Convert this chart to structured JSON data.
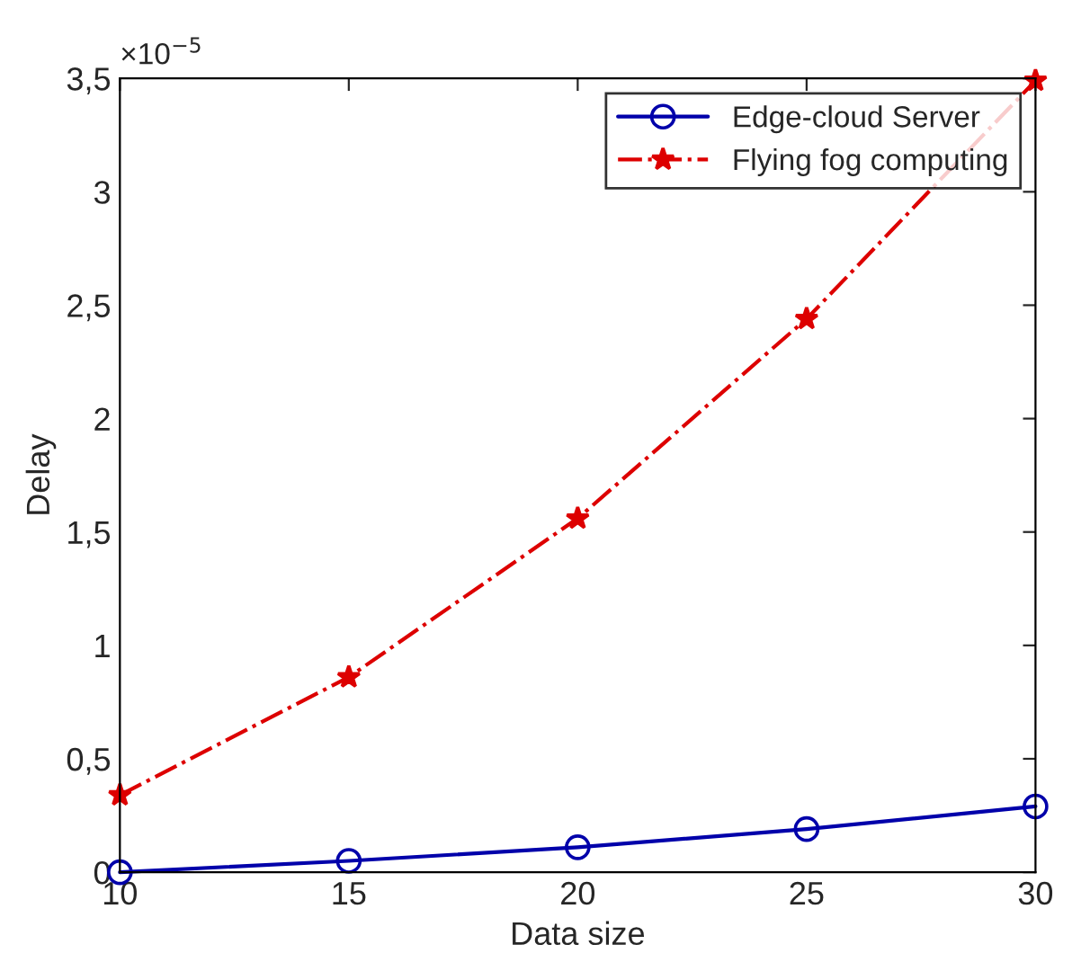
{
  "chart_data": {
    "type": "line",
    "xlabel": "Data size",
    "ylabel": "Delay",
    "annotations": [
      "×10$^{−5}$"
    ],
    "x": [
      10,
      15,
      20,
      25,
      30
    ],
    "series": [
      {
        "name": "Edge-cloud Server",
        "color": "#0000aa",
        "values": [
          0.0,
          0.05,
          0.11,
          0.19,
          0.29
        ],
        "marker": "circle",
        "line_style": "solid"
      },
      {
        "name": "Flying fog computing",
        "color": "#dd0000",
        "values": [
          0.34,
          0.86,
          1.56,
          2.44,
          3.49
        ],
        "marker": "star",
        "line_style": "dashdot"
      }
    ],
    "xlim": [
      10,
      30
    ],
    "xticks": [
      10,
      15,
      20,
      25,
      30
    ],
    "ylim": [
      0,
      3.5
    ],
    "yticks": [
      0,
      {
        "value": 0.5,
        "label": "0,5"
      },
      1,
      {
        "value": 1.5,
        "label": "1,5"
      },
      2,
      {
        "value": 2.5,
        "label": "2,5"
      },
      3,
      {
        "value": 3.5,
        "label": "3,5"
      }
    ],
    "grid": false,
    "legend": "top right"
  }
}
